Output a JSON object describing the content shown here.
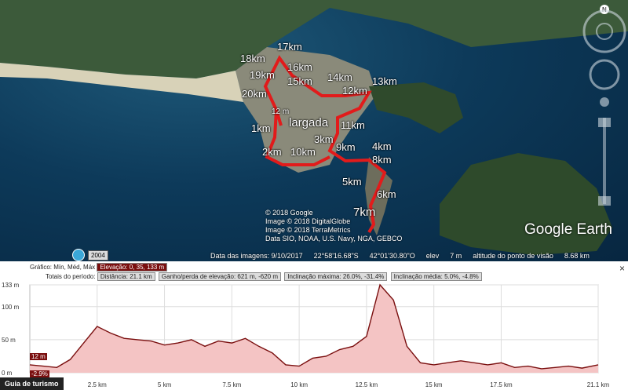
{
  "map": {
    "start_label": "largada",
    "start_elev": "12 m",
    "km_labels": [
      "17km",
      "18km",
      "16km",
      "19km",
      "15km",
      "14km",
      "13km",
      "20km",
      "12km",
      "1km",
      "11km",
      "3km",
      "9km",
      "4km",
      "2km",
      "10km",
      "8km",
      "5km",
      "6km",
      "7km"
    ],
    "credits": [
      "© 2018 Google",
      "Image © 2018 DigitalGlobe",
      "Image © 2018 TerraMetrics",
      "Data SIO, NOAA, U.S. Navy, NGA, GEBCO"
    ],
    "logo": "Google Earth",
    "compass_letter": "N",
    "history_year": "2004",
    "status": {
      "imagery_date": "Data das imagens: 9/10/2017",
      "lat": "22°58'16.68\"S",
      "lon": "42°01'30.80\"O",
      "elev_label": "elev",
      "elev_value": "7 m",
      "eye_label": "altitude do ponto de visão",
      "eye_value": "8.68 km"
    }
  },
  "profile": {
    "graph_label": "Gráfico:",
    "graph_opts": "Mín, Méd, Máx",
    "elevation": "Elevação: 0, 35, 133 m",
    "totals_label": "Totais do período:",
    "distance": "Distância: 21.1 km",
    "gain": "Ganho/perda de elevação: 621 m, -620 m",
    "max_slope": "Inclinação máxima: 26.0%, -31.4%",
    "avg_slope": "Inclinação média: 5.0%, -4.8%",
    "cursor_elev": "12 m",
    "cursor_slope": "-2.9%",
    "tab": "Guia de turismo",
    "close": "×"
  },
  "chart_data": {
    "type": "area",
    "x": [
      0,
      0.5,
      1,
      1.5,
      2,
      2.5,
      3,
      3.5,
      4,
      4.5,
      5,
      5.5,
      6,
      6.5,
      7,
      7.5,
      8,
      8.5,
      9,
      9.5,
      10,
      10.5,
      11,
      11.5,
      12,
      12.5,
      13,
      13.5,
      14,
      14.5,
      15,
      15.5,
      16,
      16.5,
      17,
      17.5,
      18,
      18.5,
      19,
      19.5,
      20,
      20.5,
      21.1
    ],
    "y": [
      12,
      10,
      8,
      20,
      45,
      70,
      60,
      52,
      50,
      48,
      42,
      45,
      50,
      40,
      48,
      45,
      52,
      40,
      30,
      12,
      10,
      22,
      25,
      35,
      40,
      55,
      133,
      110,
      40,
      15,
      12,
      15,
      18,
      15,
      12,
      15,
      8,
      10,
      6,
      8,
      10,
      7,
      12
    ],
    "xlabel": "",
    "ylabel": "",
    "xticks": [
      "2.5 km",
      "5 km",
      "7.5 km",
      "10 km",
      "12.5 km",
      "15 km",
      "17.5 km",
      "21.1 km"
    ],
    "yticks": [
      "133 m",
      "100 m",
      "50 m",
      "0 m"
    ],
    "ylim": [
      0,
      133
    ],
    "xlim": [
      0,
      21.1
    ],
    "line_color": "#7a0f0f",
    "fill_color": "#f4c4c4"
  }
}
